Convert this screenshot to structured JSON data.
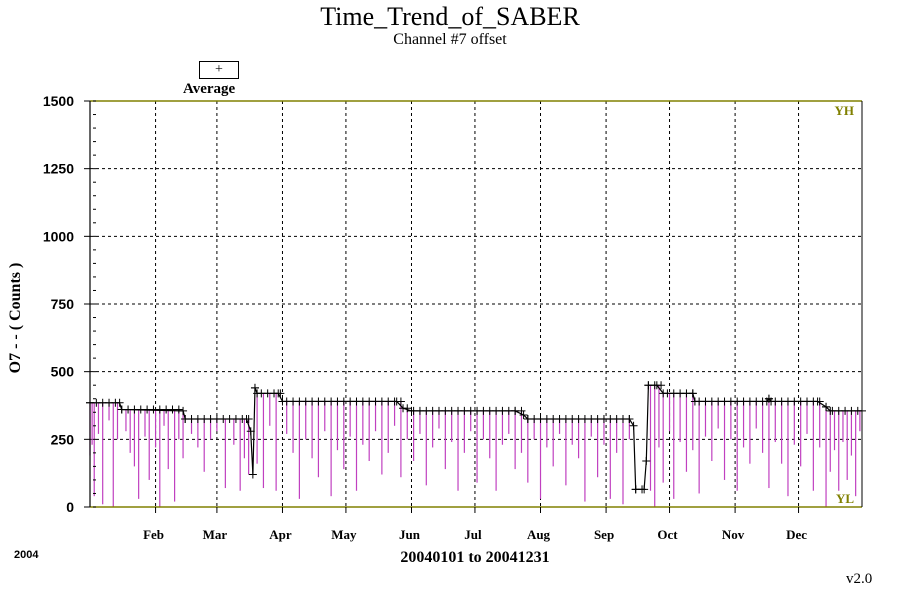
{
  "chart_data": {
    "type": "line",
    "title": "Time_Trend_of_SABER",
    "subtitle": "Channel #7 offset",
    "ylabel": "O7 - - ( Counts )",
    "xlabel": "20040101 to 20041231",
    "year_label": "2004",
    "version": "v2.0",
    "legend": {
      "symbol": "+",
      "label": "Average"
    },
    "ylim": [
      0,
      1500
    ],
    "xlim_days": [
      1,
      366
    ],
    "y_ticks": [
      "0",
      "250",
      "500",
      "750",
      "1000",
      "1250",
      "1500"
    ],
    "y_tick_values": [
      0,
      250,
      500,
      750,
      1000,
      1250,
      1500
    ],
    "x_ticks": [
      "Feb",
      "Mar",
      "Apr",
      "May",
      "Jun",
      "Jul",
      "Aug",
      "Sep",
      "Oct",
      "Nov",
      "Dec"
    ],
    "x_tick_dates": [
      "2004-02-01",
      "2004-03-01",
      "2004-04-01",
      "2004-05-01",
      "2004-06-01",
      "2004-07-01",
      "2004-08-01",
      "2004-09-01",
      "2004-10-01",
      "2004-11-01",
      "2004-12-01"
    ],
    "limits": {
      "high_label": "YH",
      "high_value": 1500,
      "low_label": "YL",
      "low_value": 0,
      "color": "#808000"
    },
    "grid": true,
    "series": [
      {
        "name": "Average",
        "marker": "+",
        "color": "#000000",
        "points": [
          [
            "2004-01-01",
            385
          ],
          [
            "2004-01-15",
            385
          ],
          [
            "2004-01-16",
            360
          ],
          [
            "2004-02-14",
            355
          ],
          [
            "2004-02-15",
            325
          ],
          [
            "2004-03-15",
            325
          ],
          [
            "2004-03-17",
            280
          ],
          [
            "2004-03-18",
            120
          ],
          [
            "2004-03-19",
            440
          ],
          [
            "2004-03-20",
            420
          ],
          [
            "2004-03-30",
            420
          ],
          [
            "2004-04-01",
            390
          ],
          [
            "2004-05-25",
            390
          ],
          [
            "2004-05-28",
            365
          ],
          [
            "2004-06-01",
            355
          ],
          [
            "2004-07-20",
            355
          ],
          [
            "2004-07-24",
            340
          ],
          [
            "2004-07-26",
            325
          ],
          [
            "2004-09-12",
            325
          ],
          [
            "2004-09-14",
            300
          ],
          [
            "2004-09-15",
            65
          ],
          [
            "2004-09-19",
            65
          ],
          [
            "2004-09-20",
            170
          ],
          [
            "2004-09-21",
            450
          ],
          [
            "2004-09-25",
            450
          ],
          [
            "2004-09-28",
            420
          ],
          [
            "2004-10-12",
            420
          ],
          [
            "2004-10-13",
            390
          ],
          [
            "2004-11-16",
            390
          ],
          [
            "2004-11-17",
            400
          ],
          [
            "2004-11-18",
            390
          ],
          [
            "2004-12-10",
            390
          ],
          [
            "2004-12-14",
            370
          ],
          [
            "2004-12-16",
            355
          ],
          [
            "2004-12-31",
            355
          ]
        ]
      },
      {
        "name": "",
        "color": "#c040c0",
        "style": "spikes",
        "note_values_are_minima": true,
        "spikes": [
          [
            "2004-01-01",
            190
          ],
          [
            "2004-01-02",
            230
          ],
          [
            "2004-01-03",
            40
          ],
          [
            "2004-01-05",
            270
          ],
          [
            "2004-01-07",
            10
          ],
          [
            "2004-01-10",
            320
          ],
          [
            "2004-01-12",
            0
          ],
          [
            "2004-01-14",
            250
          ],
          [
            "2004-01-18",
            280
          ],
          [
            "2004-01-20",
            200
          ],
          [
            "2004-01-22",
            150
          ],
          [
            "2004-01-24",
            30
          ],
          [
            "2004-01-27",
            260
          ],
          [
            "2004-01-29",
            100
          ],
          [
            "2004-02-01",
            220
          ],
          [
            "2004-02-03",
            0
          ],
          [
            "2004-02-05",
            300
          ],
          [
            "2004-02-07",
            140
          ],
          [
            "2004-02-10",
            20
          ],
          [
            "2004-02-12",
            250
          ],
          [
            "2004-02-14",
            180
          ],
          [
            "2004-02-18",
            270
          ],
          [
            "2004-02-21",
            220
          ],
          [
            "2004-02-24",
            130
          ],
          [
            "2004-02-27",
            250
          ],
          [
            "2004-03-01",
            280
          ],
          [
            "2004-03-05",
            70
          ],
          [
            "2004-03-09",
            230
          ],
          [
            "2004-03-12",
            60
          ],
          [
            "2004-03-14",
            180
          ],
          [
            "2004-03-16",
            120
          ],
          [
            "2004-03-20",
            160
          ],
          [
            "2004-03-23",
            70
          ],
          [
            "2004-03-26",
            300
          ],
          [
            "2004-03-29",
            60
          ],
          [
            "2004-04-03",
            270
          ],
          [
            "2004-04-06",
            200
          ],
          [
            "2004-04-09",
            30
          ],
          [
            "2004-04-12",
            250
          ],
          [
            "2004-04-15",
            180
          ],
          [
            "2004-04-18",
            110
          ],
          [
            "2004-04-21",
            280
          ],
          [
            "2004-04-24",
            40
          ],
          [
            "2004-04-27",
            210
          ],
          [
            "2004-04-30",
            140
          ],
          [
            "2004-05-03",
            260
          ],
          [
            "2004-05-06",
            60
          ],
          [
            "2004-05-09",
            230
          ],
          [
            "2004-05-12",
            170
          ],
          [
            "2004-05-15",
            280
          ],
          [
            "2004-05-18",
            120
          ],
          [
            "2004-05-21",
            200
          ],
          [
            "2004-05-24",
            300
          ],
          [
            "2004-05-27",
            110
          ],
          [
            "2004-05-30",
            250
          ],
          [
            "2004-06-02",
            170
          ],
          [
            "2004-06-05",
            270
          ],
          [
            "2004-06-08",
            80
          ],
          [
            "2004-06-11",
            220
          ],
          [
            "2004-06-14",
            290
          ],
          [
            "2004-06-17",
            140
          ],
          [
            "2004-06-20",
            240
          ],
          [
            "2004-06-23",
            60
          ],
          [
            "2004-06-26",
            200
          ],
          [
            "2004-06-29",
            280
          ],
          [
            "2004-07-02",
            90
          ],
          [
            "2004-07-05",
            250
          ],
          [
            "2004-07-08",
            180
          ],
          [
            "2004-07-11",
            60
          ],
          [
            "2004-07-14",
            230
          ],
          [
            "2004-07-17",
            270
          ],
          [
            "2004-07-20",
            140
          ],
          [
            "2004-07-23",
            200
          ],
          [
            "2004-07-26",
            90
          ],
          [
            "2004-07-29",
            250
          ],
          [
            "2004-08-01",
            30
          ],
          [
            "2004-08-04",
            220
          ],
          [
            "2004-08-07",
            150
          ],
          [
            "2004-08-10",
            270
          ],
          [
            "2004-08-13",
            80
          ],
          [
            "2004-08-16",
            230
          ],
          [
            "2004-08-19",
            180
          ],
          [
            "2004-08-22",
            20
          ],
          [
            "2004-08-25",
            260
          ],
          [
            "2004-08-28",
            110
          ],
          [
            "2004-08-31",
            230
          ],
          [
            "2004-09-03",
            30
          ],
          [
            "2004-09-06",
            200
          ],
          [
            "2004-09-09",
            10
          ],
          [
            "2004-09-12",
            250
          ],
          [
            "2004-09-22",
            60
          ],
          [
            "2004-09-24",
            0
          ],
          [
            "2004-09-26",
            220
          ],
          [
            "2004-09-28",
            90
          ],
          [
            "2004-10-01",
            280
          ],
          [
            "2004-10-03",
            30
          ],
          [
            "2004-10-06",
            240
          ],
          [
            "2004-10-09",
            130
          ],
          [
            "2004-10-12",
            210
          ],
          [
            "2004-10-15",
            50
          ],
          [
            "2004-10-18",
            260
          ],
          [
            "2004-10-21",
            170
          ],
          [
            "2004-10-24",
            290
          ],
          [
            "2004-10-27",
            100
          ],
          [
            "2004-10-30",
            250
          ],
          [
            "2004-11-02",
            60
          ],
          [
            "2004-11-05",
            220
          ],
          [
            "2004-11-08",
            160
          ],
          [
            "2004-11-11",
            290
          ],
          [
            "2004-11-14",
            200
          ],
          [
            "2004-11-17",
            70
          ],
          [
            "2004-11-20",
            240
          ],
          [
            "2004-11-23",
            160
          ],
          [
            "2004-11-26",
            40
          ],
          [
            "2004-11-29",
            230
          ],
          [
            "2004-12-02",
            150
          ],
          [
            "2004-12-05",
            270
          ],
          [
            "2004-12-08",
            60
          ],
          [
            "2004-12-11",
            220
          ],
          [
            "2004-12-14",
            0
          ],
          [
            "2004-12-16",
            130
          ],
          [
            "2004-12-18",
            210
          ],
          [
            "2004-12-20",
            60
          ],
          [
            "2004-12-22",
            240
          ],
          [
            "2004-12-24",
            100
          ],
          [
            "2004-12-26",
            190
          ],
          [
            "2004-12-28",
            40
          ],
          [
            "2004-12-30",
            280
          ]
        ]
      }
    ]
  }
}
